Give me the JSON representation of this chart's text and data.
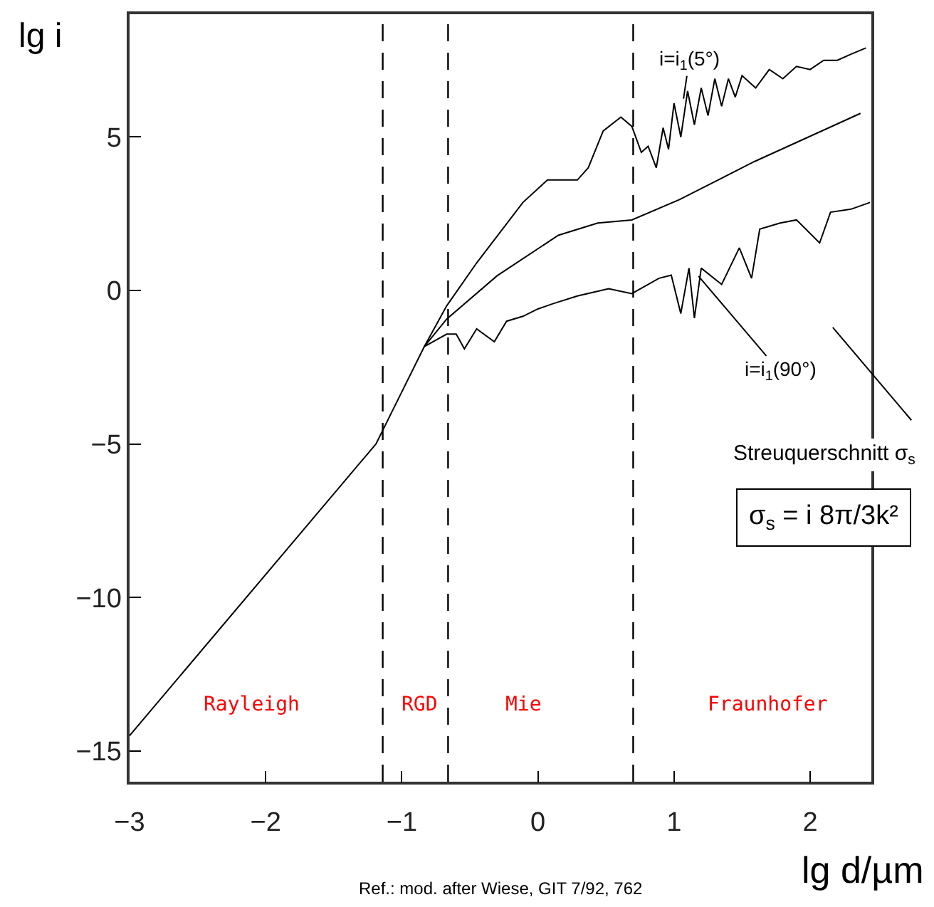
{
  "chart_data": {
    "type": "line",
    "xlabel": "lg d/µm",
    "ylabel": "lg i",
    "series": [
      {
        "name": "i=i$_{1}$(5°)",
        "color": "#000000",
        "x": [
          -3,
          -1.19,
          -0.835,
          -0.67,
          -0.45,
          -0.11,
          0.07,
          0.29,
          0.37,
          0.48,
          0.61,
          0.69,
          0.76,
          0.81,
          0.87,
          0.92,
          0.96,
          1.0,
          1.05,
          1.1,
          1.15,
          1.2,
          1.25,
          1.3,
          1.35,
          1.4,
          1.45,
          1.5,
          1.6,
          1.7,
          1.8,
          1.9,
          2.0,
          2.1,
          2.2,
          2.3,
          2.41
        ],
        "values": [
          -14.5,
          -5,
          -1.83,
          -0.5,
          0.9,
          2.87,
          3.6,
          3.6,
          4.0,
          5.2,
          5.65,
          5.35,
          4.5,
          4.7,
          4.0,
          5.3,
          4.6,
          6.1,
          5.0,
          6.5,
          5.4,
          6.6,
          5.7,
          6.9,
          6.0,
          6.9,
          6.3,
          7.0,
          6.6,
          7.2,
          6.9,
          7.3,
          7.2,
          7.5,
          7.5,
          7.7,
          7.9
        ]
      },
      {
        "color": "#000000",
        "x": [
          -0.835,
          -0.67,
          -0.3,
          0.15,
          0.44,
          0.69,
          1.04,
          1.59,
          2.37
        ],
        "values": [
          -1.83,
          -0.93,
          0.48,
          1.8,
          2.2,
          2.3,
          2.96,
          4.2,
          5.77
        ]
      },
      {
        "name": "i=i$_{1}$(90°)",
        "color": "#000000",
        "x": [
          -0.835,
          -0.67,
          -0.6,
          -0.54,
          -0.45,
          -0.32,
          -0.23,
          -0.11,
          0.0,
          0.11,
          0.29,
          0.52,
          0.69,
          0.89,
          0.98,
          1.05,
          1.11,
          1.15,
          1.2,
          1.35,
          1.48,
          1.57,
          1.63,
          1.78,
          1.9,
          2.07,
          2.15,
          2.3,
          2.44
        ],
        "values": [
          -1.83,
          -1.42,
          -1.42,
          -1.9,
          -1.25,
          -1.67,
          -1.0,
          -0.84,
          -0.6,
          -0.43,
          -0.18,
          0.06,
          -0.1,
          0.4,
          0.5,
          -0.75,
          0.73,
          -0.9,
          0.73,
          0.2,
          1.39,
          0.4,
          2.0,
          2.2,
          2.3,
          1.55,
          2.55,
          2.65,
          2.87
        ]
      }
    ],
    "xlim": [
      -3,
      2.45
    ],
    "ylim": [
      -16,
      9
    ],
    "xticks": [
      -3,
      -2,
      -1,
      0,
      1,
      2
    ],
    "yticks": [
      -15,
      -10,
      -5,
      0,
      5
    ],
    "grid": false,
    "legend": false,
    "marker": "none",
    "line_style": "solid",
    "ref_lines": [
      {
        "axis": "x",
        "value": -1.14,
        "line_style": "dashed",
        "color": "#000000"
      },
      {
        "axis": "x",
        "value": -0.66,
        "line_style": "dashed",
        "color": "#000000"
      },
      {
        "axis": "x",
        "value": 0.7,
        "line_style": "dashed",
        "color": "#000000"
      }
    ],
    "annotations": [
      "Rayleigh",
      "RGD",
      "Mie",
      "Fraunhofer",
      "Streuquerschnitt σ$_{s}$",
      "σ$_{s}$ = i 8π/3k²",
      "Ref.: mod. after Wiese, GIT 7/92, 762"
    ]
  }
}
